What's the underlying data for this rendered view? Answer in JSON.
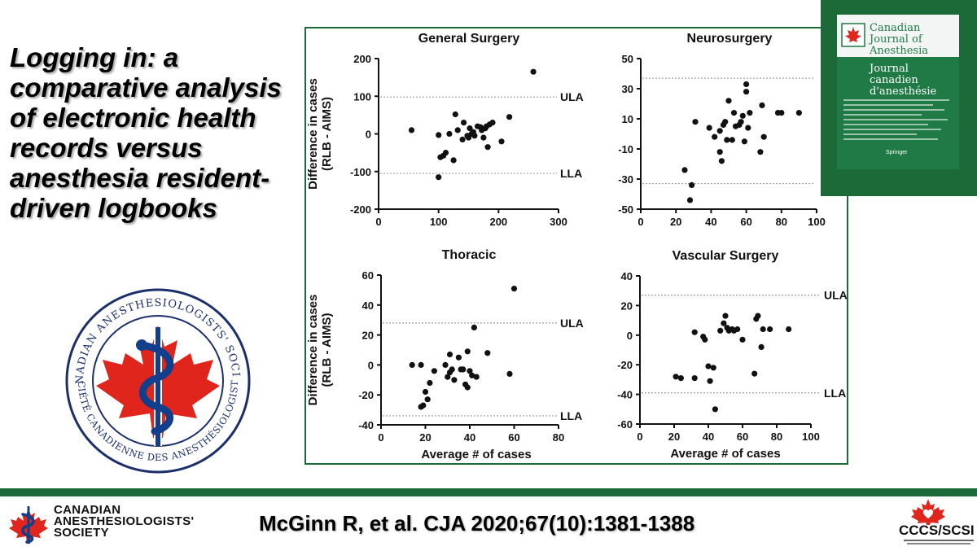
{
  "slide": {
    "title": "Logging in: a comparative analysis of electronic health records versus anesthesia resident-driven logbooks",
    "citation": "McGinn R, et al. CJA 2020;67(10):1381-1388",
    "footer_society": "CANADIAN ANESTHESIOLOGISTS' SOCIETY",
    "ccs_label": "CCCS/SCSI",
    "journal_cover": {
      "title_en": "Canadian Journal of Anesthesia",
      "title_fr": "Journal canadien d'anesthésie",
      "publisher": "Springer"
    },
    "society_seal": {
      "text_top": "CANADIAN ANESTHESIOLOGISTS' SOCIETY",
      "text_bottom": "SOCIÉTÉ CANADIENNE DES ANESTHÉSIOLOGISTES"
    },
    "colors": {
      "brand_green": "#1d6a39",
      "maple_red": "#e0261c",
      "seal_blue": "#123f8c",
      "points": "#111111"
    }
  },
  "chart_data": [
    {
      "type": "scatter",
      "title": "General Surgery",
      "xlabel": "",
      "ylabel": "Difference in cases (RLB - AIMS)",
      "xlim": [
        0,
        300
      ],
      "ylim": [
        -200,
        200
      ],
      "xticks": [
        0,
        100,
        200,
        300
      ],
      "yticks": [
        -200,
        -100,
        0,
        100,
        200
      ],
      "reference_lines": [
        {
          "label": "ULA",
          "y": 98
        },
        {
          "label": "LLA",
          "y": -105
        }
      ],
      "points": [
        [
          55,
          10
        ],
        [
          100,
          -3
        ],
        [
          103,
          -62
        ],
        [
          100,
          -115
        ],
        [
          108,
          -58
        ],
        [
          112,
          -50
        ],
        [
          118,
          0
        ],
        [
          125,
          -70
        ],
        [
          128,
          52
        ],
        [
          132,
          10
        ],
        [
          140,
          -15
        ],
        [
          142,
          30
        ],
        [
          148,
          -5
        ],
        [
          150,
          -10
        ],
        [
          152,
          15
        ],
        [
          155,
          0
        ],
        [
          158,
          5
        ],
        [
          160,
          -5
        ],
        [
          165,
          20
        ],
        [
          170,
          18
        ],
        [
          172,
          10
        ],
        [
          175,
          -10
        ],
        [
          178,
          15
        ],
        [
          180,
          20
        ],
        [
          182,
          -35
        ],
        [
          185,
          25
        ],
        [
          190,
          30
        ],
        [
          205,
          -20
        ],
        [
          218,
          45
        ],
        [
          258,
          165
        ]
      ]
    },
    {
      "type": "scatter",
      "title": "Neurosurgery",
      "xlabel": "",
      "ylabel": "",
      "xlim": [
        0,
        100
      ],
      "ylim": [
        -50,
        50
      ],
      "xticks": [
        0,
        20,
        40,
        60,
        80,
        100
      ],
      "yticks": [
        -50,
        -30,
        -10,
        10,
        30,
        50
      ],
      "reference_lines": [
        {
          "y": 37
        },
        {
          "y": -33
        }
      ],
      "points": [
        [
          25,
          -24
        ],
        [
          28,
          -44
        ],
        [
          29,
          -34
        ],
        [
          31,
          8
        ],
        [
          39,
          4
        ],
        [
          42,
          -2
        ],
        [
          45,
          -12
        ],
        [
          45,
          2
        ],
        [
          46,
          -18
        ],
        [
          47,
          6
        ],
        [
          48,
          8
        ],
        [
          49,
          -4
        ],
        [
          50,
          22
        ],
        [
          52,
          -4
        ],
        [
          53,
          14
        ],
        [
          54,
          5
        ],
        [
          56,
          6
        ],
        [
          57,
          8
        ],
        [
          58,
          12
        ],
        [
          59,
          -5
        ],
        [
          60,
          33
        ],
        [
          60,
          28
        ],
        [
          61,
          4
        ],
        [
          62,
          14
        ],
        [
          68,
          -12
        ],
        [
          69,
          19
        ],
        [
          70,
          -2
        ],
        [
          78,
          14
        ],
        [
          80,
          14
        ],
        [
          90,
          14
        ]
      ]
    },
    {
      "type": "scatter",
      "title": "Thoracic",
      "xlabel": "Average # of cases",
      "ylabel": "Difference in cases (RLB - AIMS)",
      "xlim": [
        0,
        80
      ],
      "ylim": [
        -40,
        60
      ],
      "xticks": [
        0,
        20,
        40,
        60,
        80
      ],
      "yticks": [
        -40,
        -20,
        0,
        20,
        40,
        60
      ],
      "reference_lines": [
        {
          "label": "ULA",
          "y": 28
        },
        {
          "label": "LLA",
          "y": -34
        }
      ],
      "points": [
        [
          14,
          0
        ],
        [
          18,
          0
        ],
        [
          18,
          -28
        ],
        [
          19,
          -27
        ],
        [
          20,
          -18
        ],
        [
          21,
          -23
        ],
        [
          22,
          -12
        ],
        [
          24,
          -4
        ],
        [
          29,
          0
        ],
        [
          30,
          -8
        ],
        [
          31,
          7
        ],
        [
          31,
          -5
        ],
        [
          32,
          -3
        ],
        [
          33,
          -10
        ],
        [
          35,
          5
        ],
        [
          36,
          -3
        ],
        [
          37,
          -3
        ],
        [
          38,
          -13
        ],
        [
          39,
          -15
        ],
        [
          39,
          9
        ],
        [
          40,
          -4
        ],
        [
          41,
          -7
        ],
        [
          42,
          25
        ],
        [
          43,
          -8
        ],
        [
          48,
          8
        ],
        [
          58,
          -6
        ],
        [
          60,
          51
        ]
      ]
    },
    {
      "type": "scatter",
      "title": "Vascular Surgery",
      "xlabel": "Average # of cases",
      "ylabel": "",
      "xlim": [
        0,
        100
      ],
      "ylim": [
        -60,
        40
      ],
      "xticks": [
        0,
        20,
        40,
        60,
        80,
        100
      ],
      "yticks": [
        -60,
        -40,
        -20,
        0,
        20,
        40
      ],
      "reference_lines": [
        {
          "label": "ULA",
          "y": 27
        },
        {
          "label": "LLA",
          "y": -39
        }
      ],
      "points": [
        [
          21,
          -28
        ],
        [
          24,
          -29
        ],
        [
          32,
          -29
        ],
        [
          32,
          2
        ],
        [
          37,
          -1
        ],
        [
          38,
          -3
        ],
        [
          40,
          -21
        ],
        [
          41,
          -31
        ],
        [
          43,
          -22
        ],
        [
          44,
          -50
        ],
        [
          47,
          3
        ],
        [
          49,
          8
        ],
        [
          50,
          13
        ],
        [
          51,
          5
        ],
        [
          52,
          3
        ],
        [
          54,
          4
        ],
        [
          55,
          3
        ],
        [
          57,
          4
        ],
        [
          60,
          -3
        ],
        [
          67,
          -26
        ],
        [
          68,
          11
        ],
        [
          69,
          13
        ],
        [
          71,
          -8
        ],
        [
          72,
          4
        ],
        [
          76,
          4
        ],
        [
          87,
          4
        ]
      ]
    }
  ]
}
